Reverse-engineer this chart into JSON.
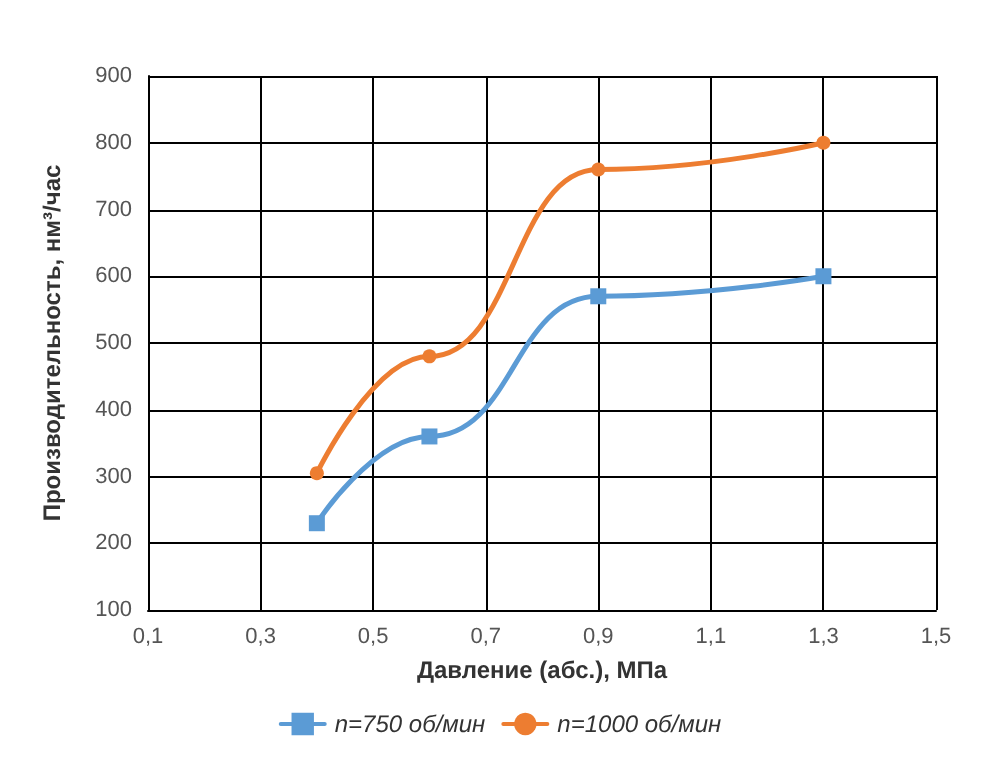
{
  "chart_data": {
    "type": "line",
    "xlabel": "Давление (абс.), МПа",
    "ylabel": "Производительность, нм³/час",
    "x": [
      0.4,
      0.6,
      0.9,
      1.3
    ],
    "series": [
      {
        "name": "n=750 об/мин",
        "color": "#5b9bd5",
        "marker": "square",
        "values": [
          230,
          360,
          570,
          600
        ]
      },
      {
        "name": "n=1000 об/мин",
        "color": "#ed7d31",
        "marker": "circle",
        "values": [
          305,
          480,
          760,
          800
        ]
      }
    ],
    "xlim": [
      0.1,
      1.5
    ],
    "xticks": [
      {
        "value": 0.1,
        "label": "0,1"
      },
      {
        "value": 0.3,
        "label": "0,3"
      },
      {
        "value": 0.5,
        "label": "0,5"
      },
      {
        "value": 0.7,
        "label": "0,7"
      },
      {
        "value": 0.9,
        "label": "0,9"
      },
      {
        "value": 1.1,
        "label": "1,1"
      },
      {
        "value": 1.3,
        "label": "1,3"
      },
      {
        "value": 1.5,
        "label": "1,5"
      }
    ],
    "ylim": [
      100,
      900
    ],
    "yticks": [
      100,
      200,
      300,
      400,
      500,
      600,
      700,
      800,
      900
    ],
    "grid": true,
    "legend": "bottom"
  }
}
